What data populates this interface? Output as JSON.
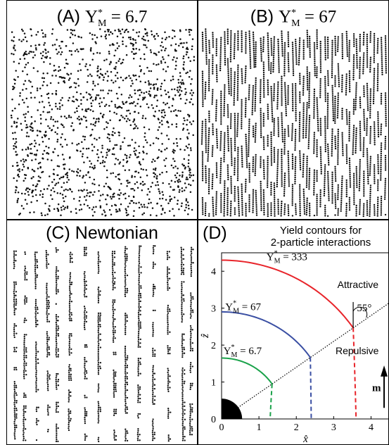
{
  "panels": {
    "a": {
      "label": "(A) ",
      "y_sym": "Y",
      "y_sup": "*",
      "y_sub": "M",
      "value": " = 6.7"
    },
    "b": {
      "label": "(B) ",
      "y_sym": "Y",
      "y_sup": "*",
      "y_sub": "M",
      "value": " = 67"
    },
    "c": {
      "label": "(C) Newtonian"
    },
    "d": {
      "label": "(D)",
      "title_line1": "Yield contours for",
      "title_line2": "2-particle interactions"
    }
  },
  "chart_data": {
    "type": "line",
    "title": "Yield contours for 2-particle interactions",
    "xlabel": "x̂",
    "ylabel": "ẑ",
    "xlim": [
      0,
      4.5
    ],
    "ylim": [
      0,
      4.5
    ],
    "xticks": [
      "0",
      "1",
      "2",
      "3",
      "4"
    ],
    "yticks": [
      "0",
      "1",
      "2",
      "3",
      "4"
    ],
    "series": [
      {
        "name": "Y*M = 333",
        "color": "#e8242a",
        "radius": 4.3,
        "solid_end_deg": 55,
        "dashed_end_x": 3.6
      },
      {
        "name": "Y*M = 67",
        "color": "#3a4fa3",
        "radius": 2.9,
        "solid_end_deg": 55,
        "dashed_end_x": 2.4
      },
      {
        "name": "Y*M = 6.7",
        "color": "#1aa24a",
        "radius": 1.65,
        "solid_end_deg": 55,
        "dashed_end_x": 1.3
      }
    ],
    "divider_angle_deg": 55,
    "annotations": {
      "attractive": "Attractive",
      "repulsive": "Repulsive",
      "angle": "55°",
      "field": "m",
      "y_sym": "Y",
      "y_sup": "*",
      "y_sub": "M",
      "labels": [
        " = 333",
        " = 67",
        " = 6.7"
      ]
    }
  }
}
